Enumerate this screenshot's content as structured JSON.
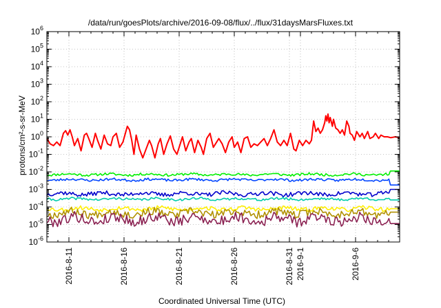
{
  "chart_data": {
    "type": "line",
    "title": "/data/run/goesPlots/archive/2016-09-08/flux/../flux/31daysMarsFluxes.txt",
    "xlabel": "Coordinated Universal Time (UTC)",
    "ylabel": "protons/cm²-s-sr-MeV",
    "yscale": "log",
    "ylim_exp": [
      -6,
      6
    ],
    "ytick_labels": [
      {
        "exp": -6,
        "base": "10",
        "sup": "-6"
      },
      {
        "exp": -5,
        "base": "10",
        "sup": "-5"
      },
      {
        "exp": -4,
        "base": "10",
        "sup": "-4"
      },
      {
        "exp": -3,
        "base": "10",
        "sup": "-3"
      },
      {
        "exp": -2,
        "base": "10",
        "sup": "-2"
      },
      {
        "exp": -1,
        "base": "10",
        "sup": "-1"
      },
      {
        "exp": 0,
        "base": "10",
        "sup": "0"
      },
      {
        "exp": 1,
        "base": "10",
        "sup": "1"
      },
      {
        "exp": 2,
        "base": "10",
        "sup": "2"
      },
      {
        "exp": 3,
        "base": "10",
        "sup": "3"
      },
      {
        "exp": 4,
        "base": "10",
        "sup": "4"
      },
      {
        "exp": 5,
        "base": "10",
        "sup": "5"
      },
      {
        "exp": 6,
        "base": "10",
        "sup": "6"
      }
    ],
    "xlim_days": [
      0,
      32
    ],
    "xticks": [
      {
        "day": 2,
        "label": "2016-8-11"
      },
      {
        "day": 7,
        "label": "2016-8-16"
      },
      {
        "day": 12,
        "label": "2016-8-21"
      },
      {
        "day": 17,
        "label": "2016-8-26"
      },
      {
        "day": 22,
        "label": "2016-8-31"
      },
      {
        "day": 23,
        "label": "2016-9-1"
      },
      {
        "day": 28,
        "label": "2016-9-6"
      }
    ],
    "grid": true,
    "series": [
      {
        "name": "red",
        "color": "#ff0000",
        "log10_values": [
          [
            0.0,
            -0.1
          ],
          [
            0.3,
            -0.4
          ],
          [
            0.6,
            -0.5
          ],
          [
            0.9,
            -0.3
          ],
          [
            1.2,
            -0.5
          ],
          [
            1.5,
            0.2
          ],
          [
            1.7,
            0.35
          ],
          [
            1.9,
            0.1
          ],
          [
            2.1,
            0.4
          ],
          [
            2.3,
            0.0
          ],
          [
            2.5,
            -0.5
          ],
          [
            2.8,
            -0.1
          ],
          [
            3.1,
            -0.8
          ],
          [
            3.4,
            0.1
          ],
          [
            3.6,
            0.2
          ],
          [
            3.8,
            -0.1
          ],
          [
            4.1,
            -0.6
          ],
          [
            4.4,
            0.2
          ],
          [
            4.6,
            -0.2
          ],
          [
            4.9,
            -0.7
          ],
          [
            5.2,
            0.1
          ],
          [
            5.5,
            -0.4
          ],
          [
            5.8,
            -0.5
          ],
          [
            6.0,
            0.0
          ],
          [
            6.3,
            0.2
          ],
          [
            6.6,
            -0.6
          ],
          [
            6.9,
            -0.3
          ],
          [
            7.1,
            0.15
          ],
          [
            7.3,
            0.6
          ],
          [
            7.5,
            0.4
          ],
          [
            7.7,
            -0.2
          ],
          [
            7.9,
            -1.0
          ],
          [
            8.1,
            0.1
          ],
          [
            8.4,
            -0.7
          ],
          [
            8.7,
            -1.2
          ],
          [
            9.0,
            -0.7
          ],
          [
            9.3,
            -0.2
          ],
          [
            9.5,
            -0.5
          ],
          [
            9.8,
            -1.2
          ],
          [
            10.1,
            -0.4
          ],
          [
            10.3,
            -0.1
          ],
          [
            10.6,
            -1.0
          ],
          [
            10.9,
            -0.4
          ],
          [
            11.2,
            0.05
          ],
          [
            11.5,
            -0.7
          ],
          [
            11.8,
            -1.0
          ],
          [
            12.1,
            -0.4
          ],
          [
            12.3,
            0.0
          ],
          [
            12.6,
            -0.8
          ],
          [
            12.9,
            -0.3
          ],
          [
            13.1,
            -0.1
          ],
          [
            13.4,
            -0.9
          ],
          [
            13.7,
            -0.2
          ],
          [
            14.0,
            -0.6
          ],
          [
            14.2,
            -1.0
          ],
          [
            14.5,
            -0.1
          ],
          [
            14.8,
            0.2
          ],
          [
            15.1,
            -0.6
          ],
          [
            15.3,
            -0.4
          ],
          [
            15.6,
            -0.1
          ],
          [
            15.9,
            -0.4
          ],
          [
            16.2,
            -0.9
          ],
          [
            16.5,
            -0.3
          ],
          [
            16.8,
            0.0
          ],
          [
            17.0,
            -0.6
          ],
          [
            17.3,
            -0.3
          ],
          [
            17.6,
            -0.9
          ],
          [
            17.9,
            -0.1
          ],
          [
            18.2,
            0.0
          ],
          [
            18.5,
            -0.6
          ],
          [
            18.8,
            -0.4
          ],
          [
            19.1,
            -0.5
          ],
          [
            19.4,
            -0.3
          ],
          [
            19.7,
            -0.1
          ],
          [
            20.0,
            -0.5
          ],
          [
            20.3,
            -0.1
          ],
          [
            20.6,
            0.4
          ],
          [
            20.9,
            -0.3
          ],
          [
            21.2,
            -0.5
          ],
          [
            21.5,
            -0.2
          ],
          [
            21.8,
            -0.5
          ],
          [
            22.1,
            0.2
          ],
          [
            22.4,
            -0.7
          ],
          [
            22.6,
            -0.8
          ],
          [
            22.9,
            -0.2
          ],
          [
            23.2,
            -0.5
          ],
          [
            23.5,
            -0.2
          ],
          [
            23.8,
            -0.4
          ],
          [
            24.0,
            -0.2
          ],
          [
            24.2,
            0.9
          ],
          [
            24.4,
            0.3
          ],
          [
            24.6,
            0.5
          ],
          [
            24.8,
            0.2
          ],
          [
            25.0,
            0.4
          ],
          [
            25.2,
            0.8
          ],
          [
            25.3,
            1.2
          ],
          [
            25.4,
            0.9
          ],
          [
            25.5,
            1.3
          ],
          [
            25.6,
            0.8
          ],
          [
            25.7,
            1.1
          ],
          [
            25.9,
            0.6
          ],
          [
            26.0,
            1.0
          ],
          [
            26.2,
            0.5
          ],
          [
            26.4,
            0.4
          ],
          [
            26.6,
            0.2
          ],
          [
            26.8,
            0.4
          ],
          [
            27.0,
            0.1
          ],
          [
            27.2,
            0.9
          ],
          [
            27.4,
            0.6
          ],
          [
            27.5,
            0.2
          ],
          [
            27.7,
            0.1
          ],
          [
            27.9,
            -0.2
          ],
          [
            28.1,
            0.3
          ],
          [
            28.4,
            0.0
          ],
          [
            28.6,
            0.2
          ],
          [
            28.8,
            -0.1
          ],
          [
            29.1,
            0.3
          ],
          [
            29.3,
            -0.1
          ],
          [
            29.6,
            0.0
          ],
          [
            29.8,
            0.2
          ],
          [
            30.1,
            -0.1
          ],
          [
            30.3,
            0.1
          ],
          [
            30.6,
            0.0
          ],
          [
            30.9,
            0.0
          ],
          [
            31.2,
            -0.05
          ],
          [
            31.6,
            0.0
          ],
          [
            32.0,
            -0.05
          ]
        ]
      },
      {
        "name": "green",
        "color": "#00ee00",
        "base": -2.15,
        "amp": 0.07,
        "end": -1.95,
        "seed": 11
      },
      {
        "name": "blue",
        "color": "#0044ff",
        "base": -2.45,
        "amp": 0.07,
        "end": -2.75,
        "seed": 23
      },
      {
        "name": "navy",
        "color": "#0000cc",
        "base": -3.25,
        "amp": 0.12,
        "end": -3.0,
        "seed": 37
      },
      {
        "name": "cyan",
        "color": "#00ccaa",
        "base": -3.55,
        "amp": 0.07,
        "end": -3.6,
        "seed": 41
      },
      {
        "name": "yellow",
        "color": "#ffee00",
        "base": -4.1,
        "amp": 0.12,
        "end": -4.1,
        "seed": 53
      },
      {
        "name": "olive",
        "color": "#b09000",
        "base": -4.35,
        "amp": 0.22,
        "end": -4.3,
        "seed": 67
      },
      {
        "name": "purple",
        "color": "#8b2252",
        "base": -4.7,
        "amp": 0.3,
        "end": -4.95,
        "seed": 79
      }
    ]
  }
}
